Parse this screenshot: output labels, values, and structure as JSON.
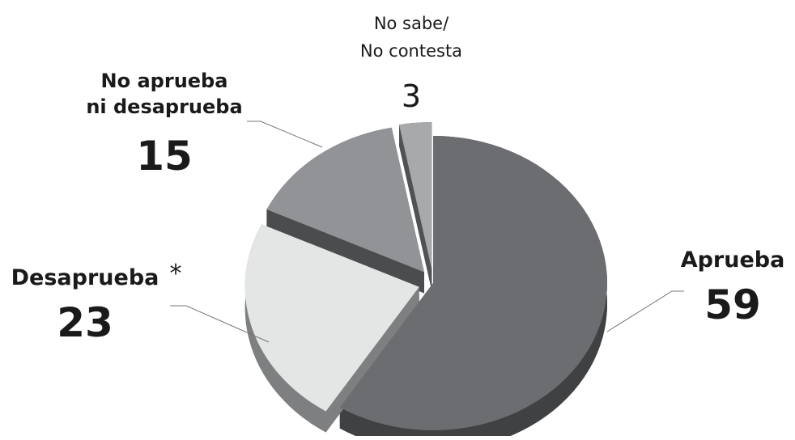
{
  "chart_data": {
    "type": "pie",
    "title": "",
    "slices": [
      {
        "label": "Aprueba",
        "label_lines": [
          "Aprueba"
        ],
        "value": 59,
        "value_text": "59",
        "color": "#6b6d70",
        "side_color": "#3f4143",
        "exploded": false
      },
      {
        "label": "Desaprueba*",
        "label_lines": [
          "Desaprueba"
        ],
        "label_suffix": "*",
        "value": 23,
        "value_text": "23",
        "color": "#e4e6e5",
        "side_color": "#7d7f80",
        "exploded": true
      },
      {
        "label": "No aprueba ni desaprueba",
        "label_lines": [
          "No aprueba",
          "ni desaprueba"
        ],
        "value": 15,
        "value_text": "15",
        "color": "#919396",
        "side_color": "#4a4c4e",
        "exploded": true
      },
      {
        "label": "No sabe/ No contesta",
        "label_lines": [
          "No sabe/",
          "No contesta"
        ],
        "value": 3,
        "value_text": "3",
        "color": "#a7a9ab",
        "side_color": "#505254",
        "exploded": true
      }
    ],
    "style": "3d-exploded",
    "legend": "none"
  }
}
